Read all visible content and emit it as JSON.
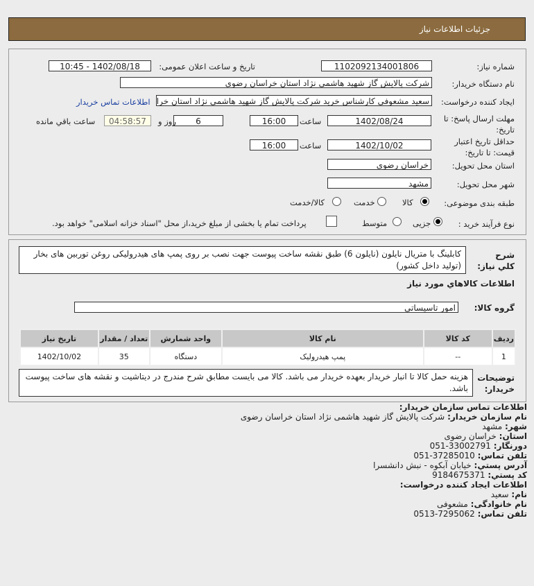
{
  "header": {
    "title": "جزئیات اطلاعات نیاز"
  },
  "form": {
    "need_number_label": "شماره نیاز:",
    "need_number": "1102092134001806",
    "announce_label": "تاریخ و ساعت اعلان عمومی:",
    "announce_value": "1402/08/18 - 10:45",
    "buyer_label": "نام دستگاه خریدار:",
    "buyer_value": "شرکت پالایش گاز شهید هاشمی نژاد   استان خراسان رضوی",
    "creator_label": "ایجاد کننده درخواست:",
    "creator_value": "سعید مشعوفی کارشناس خرید شرکت پالایش گاز شهید هاشمی نژاد   استان خراسان رضوی",
    "contact_link": "اطلاعات تماس خریدار",
    "deadline_label": "مهلت ارسال پاسخ: تا تاریخ:",
    "deadline_date": "1402/08/24",
    "time_label": "ساعت",
    "deadline_time": "16:00",
    "days": "6",
    "days_label": "روز و",
    "remaining": "04:58:57",
    "remaining_label": "ساعت باقي مانده",
    "validity_label": "حداقل تاریخ اعتبار قیمت: تا تاریخ:",
    "validity_date": "1402/10/02",
    "validity_time": "16:00",
    "province_label": "استان محل تحویل:",
    "province": "خراسان رضوی",
    "city_label": "شهر محل تحویل:",
    "city": "مشهد",
    "category_label": "طبقه بندی موضوعی:",
    "category_options": [
      "کالا",
      "خدمت",
      "کالا/خدمت"
    ],
    "category_selected": "کالا",
    "process_label": "نوع فرآیند خرید :",
    "process_options": [
      "جزیی",
      "متوسط"
    ],
    "process_selected": "جزیی",
    "payment_note": "پرداخت تمام یا بخشی از مبلغ خرید،از محل \"اسناد خزانه اسلامی\" خواهد بود."
  },
  "details": {
    "desc_label": "شرح کلي نیاز:",
    "desc": "کابلینگ با متریال نایلون (نایلون 6) طبق نقشه ساخت پیوست جهت نصب بر روی پمپ های هیدرولیکی روغن توربین های بخار (تولید داخل کشور)",
    "goods_title": "اطلاعات کالاهاي مورد نياز",
    "group_label": "گروه کالا:",
    "group": "امور تاسیساتی",
    "table": {
      "headers": [
        "ردیف",
        "کد کالا",
        "نام کالا",
        "واحد شمارش",
        "تعداد / مقدار",
        "تاریخ نیاز"
      ],
      "rows": [
        [
          "1",
          "--",
          "پمپ هیدرولیک",
          "دستگاه",
          "35",
          "1402/10/02"
        ]
      ]
    },
    "notes_label": "توضیحات خریدار:",
    "notes": "هزینه حمل کالا تا انبار خریدار بعهده خریدار می باشد. کالا می بایست مطابق شرح مندرج در دیتاشیت و نقشه های ساخت پیوست باشد."
  },
  "contact": {
    "title": "اطلاعات تماس سازمان خریدار:",
    "org_label": "نام سازمان خریدار:",
    "org": "شرکت پالایش گاز شهید هاشمی نژاد استان خراسان رضوی",
    "city_label": "شهر:",
    "city": "مشهد",
    "province_label": "استان:",
    "province": "خراسان رضوی",
    "fax_label": "دورنگار:",
    "fax": "051-33002791",
    "phone_label": "تلفن تماس:",
    "phone": "051-37285010",
    "address_label": "آدرس پستي:",
    "address": "خیابان آبکوه - نبش دانشسرا",
    "postal_label": "کد پستي:",
    "postal": "9184675371",
    "creator_title": "اطلاعات ایجاد کننده درخواست:",
    "name_label": "نام:",
    "name": "سعید",
    "family_label": "نام خانوادگی:",
    "family": "مشعوفی",
    "cphone_label": "تلفن تماس:",
    "cphone": "0513-7295062"
  }
}
